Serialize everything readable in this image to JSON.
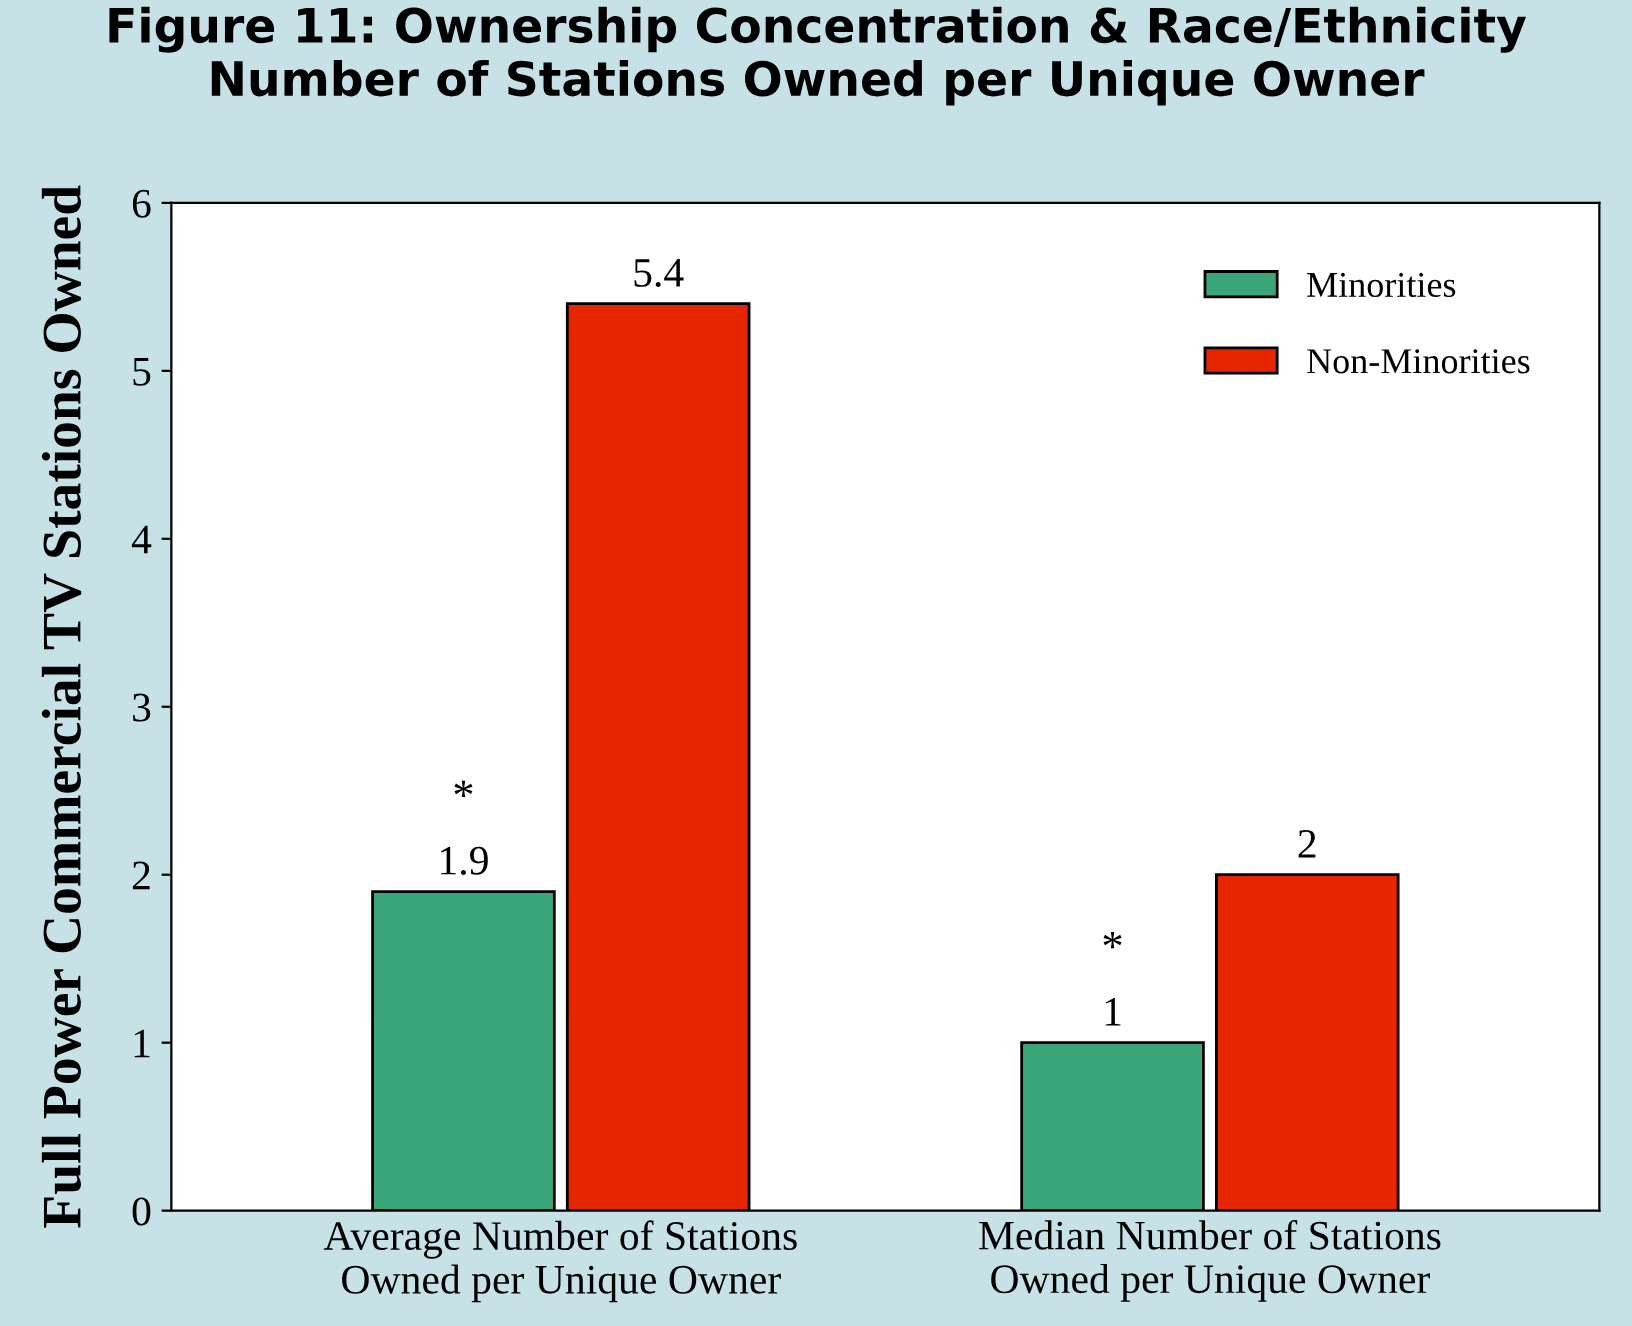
{
  "chart_data": {
    "type": "bar",
    "title": "Figure 11: Ownership Concentration & Race/Ethnicity\nNumber of Stations Owned per Unique Owner",
    "ylabel": "Full Power Commercial TV Stations Owned",
    "categories": [
      "Average Number of Stations\nOwned per Unique Owner",
      "Median Number of Stations\nOwned per Unique Owner"
    ],
    "series": [
      {
        "name": "Minorities",
        "color": "#3ba57a",
        "values": [
          1.9,
          1
        ]
      },
      {
        "name": "Non-Minorities",
        "color": "#e62600",
        "values": [
          5.4,
          2
        ]
      }
    ],
    "ylim": [
      0,
      6
    ],
    "yticks": [
      0,
      1,
      2,
      3,
      4,
      5,
      6
    ],
    "data_labels": true,
    "legend": "top right",
    "grid": false,
    "annotations": [
      {
        "text": "*",
        "x": "Average Number of Stations\nOwned per Unique Owner",
        "y": 1.9
      },
      {
        "text": "*",
        "x": "Median Number of Stations\nOwned per Unique Owner",
        "y": 1
      }
    ]
  }
}
